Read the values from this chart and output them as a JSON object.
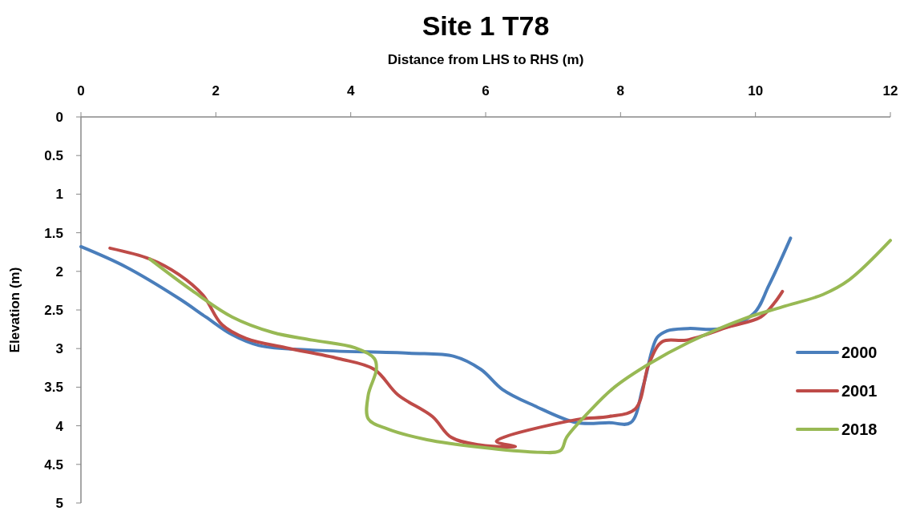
{
  "chart_data": {
    "type": "line",
    "title": "Site 1 T78",
    "xlabel": "Distance from LHS to RHS (m)",
    "ylabel": "Elevation (m)",
    "xlim": [
      0,
      12
    ],
    "xticks": [
      0,
      2,
      4,
      6,
      8,
      10,
      12
    ],
    "ylim": [
      5,
      0
    ],
    "yticks": [
      0,
      0.5,
      1,
      1.5,
      2,
      2.5,
      3,
      3.5,
      4,
      4.5,
      5
    ],
    "grid": false,
    "legend": "right",
    "marker": "none",
    "line_style": "solid",
    "series": [
      {
        "name": "2000",
        "color": "#4a7ebb",
        "x": [
          0,
          0.66,
          1.45,
          1.85,
          2.24,
          2.64,
          3.43,
          4.86,
          5.53,
          5.93,
          6.25,
          6.72,
          7.35,
          7.83,
          8.15,
          8.34,
          8.54,
          8.69,
          9.0,
          9.49,
          9.97,
          10.2,
          10.52
        ],
        "values": [
          1.68,
          1.94,
          2.35,
          2.59,
          2.82,
          2.96,
          3.02,
          3.06,
          3.1,
          3.27,
          3.53,
          3.74,
          3.96,
          3.96,
          3.96,
          3.47,
          2.86,
          2.77,
          2.74,
          2.74,
          2.55,
          2.18,
          1.57
        ]
      },
      {
        "name": "2001",
        "color": "#be4b48",
        "x": [
          0.43,
          1.02,
          1.45,
          1.81,
          2.09,
          2.45,
          3.04,
          3.82,
          4.35,
          4.7,
          5.21,
          5.49,
          5.93,
          6.44,
          6.16,
          7.35,
          7.83,
          8.22,
          8.42,
          8.62,
          8.98,
          9.6,
          10.08,
          10.28,
          10.4
        ],
        "values": [
          1.7,
          1.84,
          2.04,
          2.31,
          2.69,
          2.87,
          2.99,
          3.13,
          3.27,
          3.6,
          3.88,
          4.15,
          4.25,
          4.27,
          4.2,
          3.92,
          3.88,
          3.78,
          3.2,
          2.91,
          2.89,
          2.72,
          2.59,
          2.41,
          2.26
        ]
      },
      {
        "name": "2018",
        "color": "#98b954",
        "x": [
          1.02,
          1.65,
          2.24,
          2.84,
          3.43,
          4.06,
          4.35,
          4.38,
          4.26,
          4.26,
          4.54,
          5.13,
          5.93,
          6.72,
          7.11,
          7.2,
          7.51,
          7.91,
          8.42,
          9.01,
          9.81,
          10.4,
          11.0,
          11.39,
          12
        ],
        "values": [
          1.84,
          2.25,
          2.59,
          2.79,
          2.89,
          2.99,
          3.13,
          3.27,
          3.6,
          3.91,
          4.04,
          4.18,
          4.28,
          4.34,
          4.32,
          4.15,
          3.84,
          3.5,
          3.2,
          2.92,
          2.62,
          2.46,
          2.3,
          2.11,
          1.6
        ]
      }
    ]
  }
}
